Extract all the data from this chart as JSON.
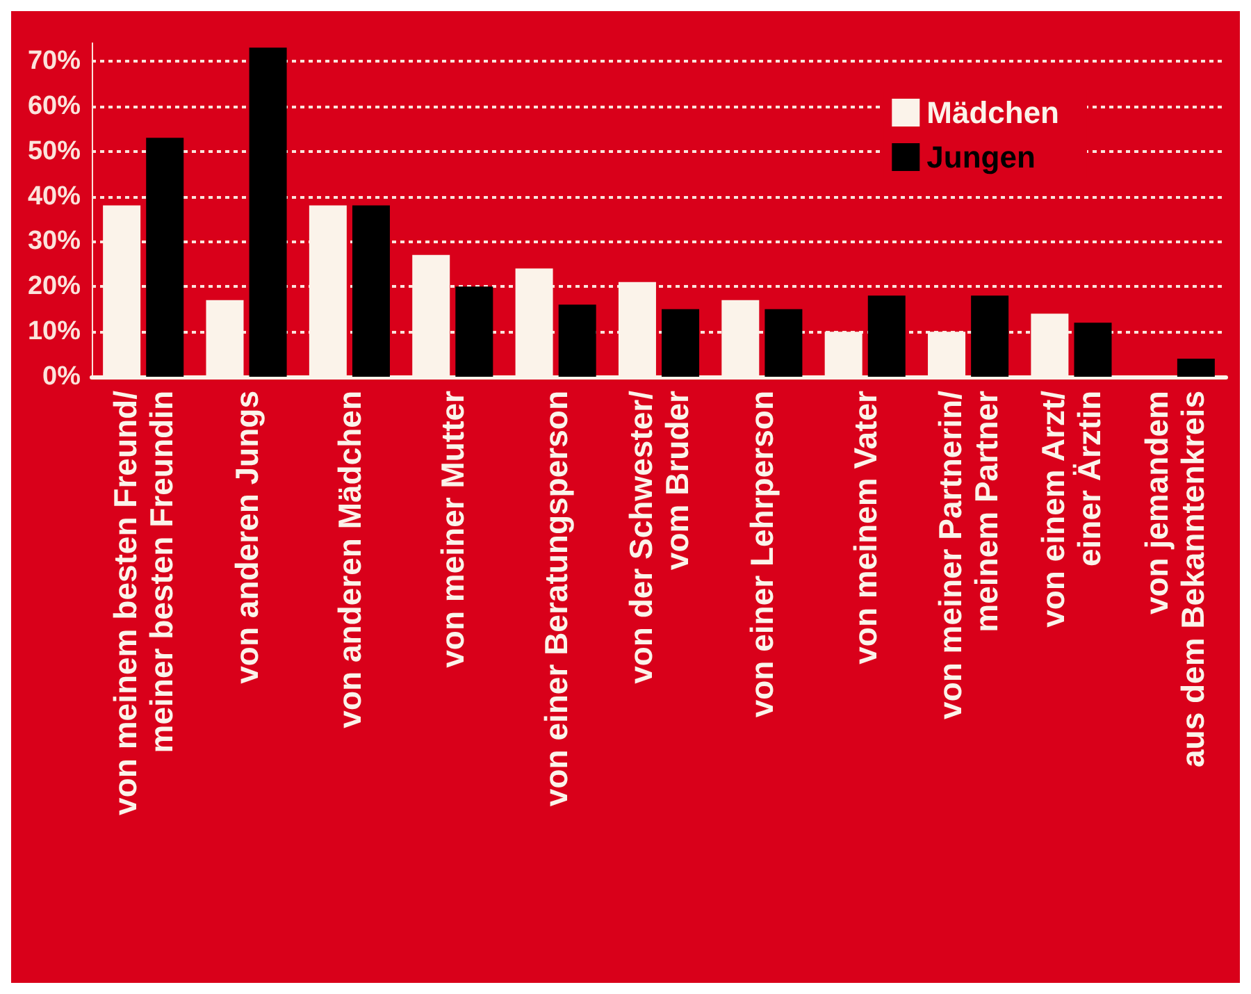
{
  "chart_data": {
    "type": "bar",
    "categories": [
      "von meinem besten Freund/\nmeiner besten Freundin",
      "von anderen Jungs",
      "von anderen Mädchen",
      "von meiner Mutter",
      "von einer Beratungsperson",
      "von der Schwester/\nvom Bruder",
      "von einer Lehrperson",
      "von meinem Vater",
      "von meiner Partnerin/\nmeinem Partner",
      "von einem Arzt/\neiner Ärztin",
      "von jemandem\naus dem Bekanntenkreis"
    ],
    "series": [
      {
        "name": "Mädchen",
        "color": "#fbf3ea",
        "values": [
          38,
          17,
          38,
          27,
          24,
          21,
          17,
          10,
          10,
          14,
          null
        ]
      },
      {
        "name": "Jungen",
        "color": "#000000",
        "values": [
          53,
          73,
          38,
          20,
          16,
          15,
          15,
          18,
          18,
          12,
          4
        ]
      }
    ],
    "ylim": [
      0,
      74
    ],
    "yticks": [
      {
        "value": 0,
        "label": "0%"
      },
      {
        "value": 10,
        "label": "10%"
      },
      {
        "value": 20,
        "label": "20%"
      },
      {
        "value": 30,
        "label": "30%"
      },
      {
        "value": 40,
        "label": "40%"
      },
      {
        "value": 50,
        "label": "50%"
      },
      {
        "value": 60,
        "label": "60%"
      },
      {
        "value": 70,
        "label": "70%"
      }
    ],
    "grid": "y",
    "legend": "top right"
  }
}
